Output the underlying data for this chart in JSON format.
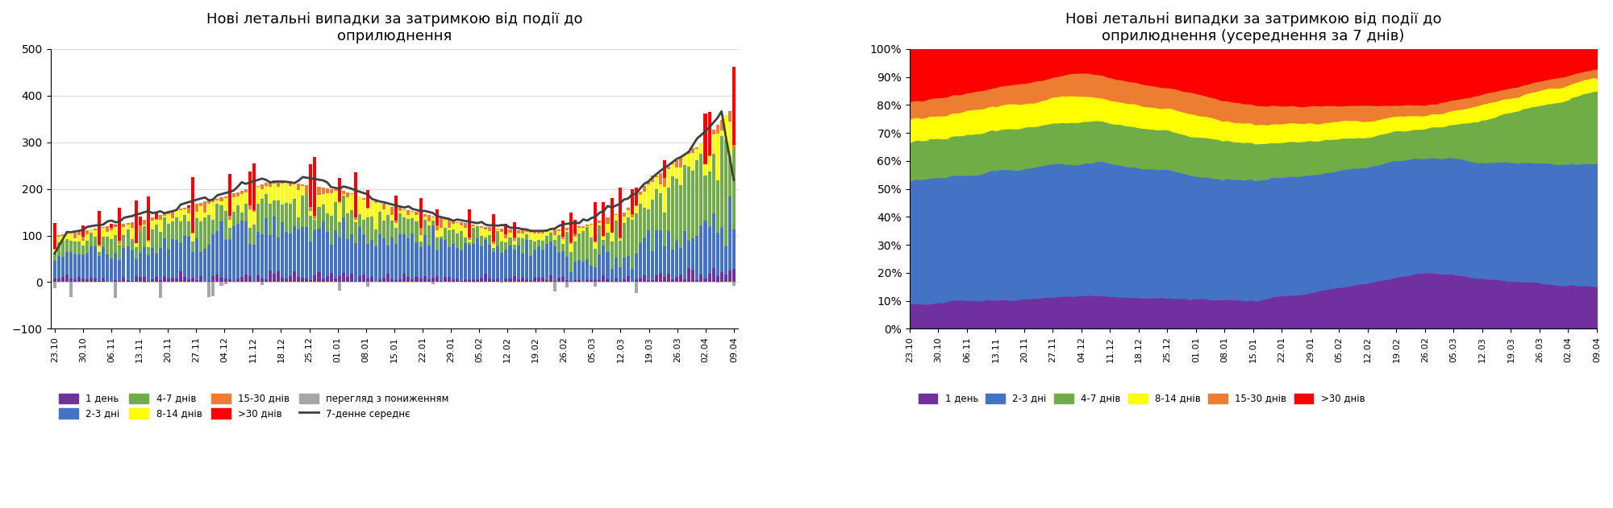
{
  "title1": "Нові летальні випадки за затримкою від події до\nоприлюднення",
  "title2": "Нові летальні випадки за затримкою від події до\nоприлюднення (усереднення за 7 днів)",
  "colors": {
    "1_day": "#7030A0",
    "2_3": "#4472C4",
    "4_7": "#70AD47",
    "8_14": "#FFFF00",
    "15_30": "#ED7D31",
    "gt30": "#FF0000",
    "revision": "#A6A6A6",
    "avg7": "#404040"
  },
  "legend_labels": {
    "1_day": "1 день",
    "2_3": "2-3 дні",
    "4_7": "4-7 днів",
    "8_14": "8-14 днів",
    "15_30": "15-30 днів",
    "gt30": ">30 днів",
    "revision": "перегляд з пониженням",
    "avg7": "7-денне середнє"
  },
  "x_labels": [
    "23.10",
    "30.10",
    "06.11",
    "13.11",
    "20.11",
    "27.11",
    "04.12",
    "11.12",
    "18.12",
    "25.12",
    "01.01",
    "08.01",
    "15.01",
    "22.01",
    "29.01",
    "05.02",
    "12.02",
    "19.02",
    "26.02",
    "05.03",
    "12.03",
    "19.03",
    "26.03",
    "02.04",
    "09.04"
  ],
  "ylim1": [
    -100,
    500
  ],
  "background": "#FFFFFF",
  "grid_color": "#D9D9D9"
}
